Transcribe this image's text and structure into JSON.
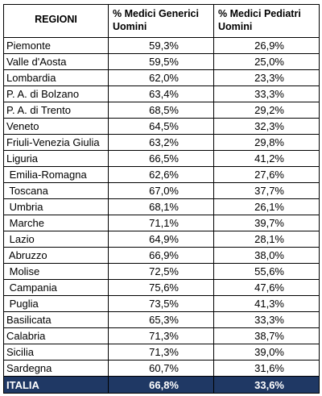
{
  "header": {
    "region_col": "REGIONI",
    "generici_col_line1": "% Medici Generici",
    "generici_col_line2": "Uomini",
    "pediatri_col_line1": "% Medici Pediatri",
    "pediatri_col_line2": "Uomini"
  },
  "rows": [
    {
      "region": "Piemonte",
      "generici": "59,3%",
      "pediatri": "26,9%"
    },
    {
      "region": "Valle d'Aosta",
      "generici": "59,5%",
      "pediatri": "25,0%"
    },
    {
      "region": "Lombardia",
      "generici": "62,0%",
      "pediatri": "23,3%"
    },
    {
      "region": "P. A. di Bolzano",
      "generici": "63,4%",
      "pediatri": "33,3%"
    },
    {
      "region": "P. A. di Trento",
      "generici": "68,5%",
      "pediatri": "29,2%"
    },
    {
      "region": "Veneto",
      "generici": "64,5%",
      "pediatri": "32,3%"
    },
    {
      "region": "Friuli-Venezia Giulia",
      "generici": "63,2%",
      "pediatri": "29,8%"
    },
    {
      "region": "Liguria",
      "generici": "66,5%",
      "pediatri": "41,2%"
    },
    {
      "region": " Emilia-Romagna",
      "generici": "62,6%",
      "pediatri": "27,6%"
    },
    {
      "region": " Toscana",
      "generici": "67,0%",
      "pediatri": "37,7%"
    },
    {
      "region": " Umbria",
      "generici": "68,1%",
      "pediatri": "26,1%"
    },
    {
      "region": " Marche",
      "generici": "71,1%",
      "pediatri": "39,7%"
    },
    {
      "region": " Lazio",
      "generici": "64,9%",
      "pediatri": "28,1%"
    },
    {
      "region": " Abruzzo",
      "generici": "66,9%",
      "pediatri": "38,0%"
    },
    {
      "region": " Molise",
      "generici": "72,5%",
      "pediatri": "55,6%"
    },
    {
      "region": " Campania",
      "generici": "75,6%",
      "pediatri": "47,6%"
    },
    {
      "region": " Puglia",
      "generici": "73,5%",
      "pediatri": "41,3%"
    },
    {
      "region": "Basilicata",
      "generici": "65,3%",
      "pediatri": "33,3%"
    },
    {
      "region": "Calabria",
      "generici": "71,3%",
      "pediatri": "38,7%"
    },
    {
      "region": "Sicilia",
      "generici": "71,3%",
      "pediatri": "39,0%"
    },
    {
      "region": "Sardegna",
      "generici": "60,7%",
      "pediatri": "31,6%"
    }
  ],
  "total": {
    "region": "ITALIA",
    "generici": "66,8%",
    "pediatri": "33,6%"
  },
  "colors": {
    "total_row_bg": "#1f3864",
    "total_row_text": "#ffffff",
    "border": "#000000"
  }
}
